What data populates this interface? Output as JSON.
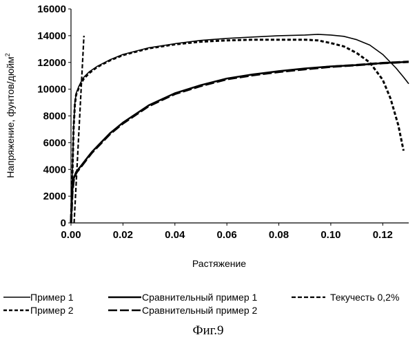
{
  "chart_data": {
    "type": "line",
    "title": "",
    "xlabel": "Растяжение",
    "ylabel": "Напряжение, фунтов/дюйм",
    "ylabel_superscript": "2",
    "xlim": [
      0,
      0.13
    ],
    "ylim": [
      0,
      16000
    ],
    "x_ticks": [
      0.0,
      0.02,
      0.04,
      0.06,
      0.08,
      0.1,
      0.12
    ],
    "x_tick_labels": [
      "0.00",
      "0.02",
      "0.04",
      "0.06",
      "0.08",
      "0.10",
      "0.12"
    ],
    "y_ticks": [
      0,
      2000,
      4000,
      6000,
      8000,
      10000,
      12000,
      14000,
      16000
    ],
    "y_tick_labels": [
      "0",
      "2000",
      "4000",
      "6000",
      "8000",
      "10000",
      "12000",
      "14000",
      "16000"
    ],
    "grid": false,
    "legend_position": "bottom",
    "caption": "Фиг.9",
    "series": [
      {
        "name": "Пример 1",
        "style": "solid-thin",
        "x": [
          0.0,
          0.0005,
          0.001,
          0.0015,
          0.002,
          0.003,
          0.004,
          0.005,
          0.007,
          0.01,
          0.015,
          0.02,
          0.03,
          0.04,
          0.05,
          0.06,
          0.07,
          0.08,
          0.09,
          0.095,
          0.1,
          0.105,
          0.11,
          0.115,
          0.12,
          0.125,
          0.128,
          0.13
        ],
        "y": [
          0,
          3500,
          7200,
          9000,
          9700,
          10200,
          10600,
          10900,
          11300,
          11700,
          12200,
          12600,
          13100,
          13400,
          13650,
          13800,
          13900,
          14000,
          14050,
          14100,
          14050,
          13950,
          13700,
          13300,
          12600,
          11600,
          10900,
          10400
        ]
      },
      {
        "name": "Пример 2",
        "style": "dashed-small",
        "x": [
          0.0,
          0.0005,
          0.001,
          0.0015,
          0.002,
          0.003,
          0.004,
          0.005,
          0.007,
          0.01,
          0.015,
          0.02,
          0.03,
          0.04,
          0.05,
          0.06,
          0.07,
          0.08,
          0.09,
          0.095,
          0.1,
          0.105,
          0.11,
          0.115,
          0.12,
          0.123,
          0.126,
          0.128
        ],
        "y": [
          0,
          3400,
          7100,
          8900,
          9600,
          10100,
          10500,
          10800,
          11200,
          11650,
          12150,
          12550,
          13050,
          13350,
          13550,
          13650,
          13700,
          13700,
          13700,
          13650,
          13450,
          13200,
          12700,
          12000,
          10700,
          9300,
          7300,
          5400
        ]
      },
      {
        "name": "Сравнительный пример 1",
        "style": "solid-thick",
        "x": [
          0.0,
          0.0005,
          0.001,
          0.002,
          0.004,
          0.006,
          0.008,
          0.01,
          0.015,
          0.02,
          0.03,
          0.04,
          0.05,
          0.06,
          0.07,
          0.08,
          0.09,
          0.1,
          0.11,
          0.12,
          0.125,
          0.13
        ],
        "y": [
          0,
          2400,
          3300,
          3800,
          4300,
          4800,
          5300,
          5700,
          6700,
          7500,
          8800,
          9700,
          10300,
          10800,
          11100,
          11350,
          11550,
          11700,
          11800,
          11950,
          12000,
          12050
        ]
      },
      {
        "name": "Сравнительный пример 2",
        "style": "dashed-bold",
        "x": [
          0.0,
          0.0005,
          0.001,
          0.002,
          0.004,
          0.006,
          0.008,
          0.01,
          0.015,
          0.02,
          0.03,
          0.04,
          0.05,
          0.06,
          0.07,
          0.08,
          0.09,
          0.1,
          0.11,
          0.12,
          0.125,
          0.13
        ],
        "y": [
          0,
          2300,
          3200,
          3750,
          4250,
          4750,
          5250,
          5650,
          6650,
          7450,
          8750,
          9650,
          10250,
          10750,
          11050,
          11300,
          11500,
          11680,
          11800,
          11950,
          12000,
          12050
        ]
      },
      {
        "name": "Текучесть 0,2%",
        "style": "dashed-medium",
        "x": [
          0.0012,
          0.005
        ],
        "y": [
          0,
          14000
        ]
      }
    ]
  }
}
